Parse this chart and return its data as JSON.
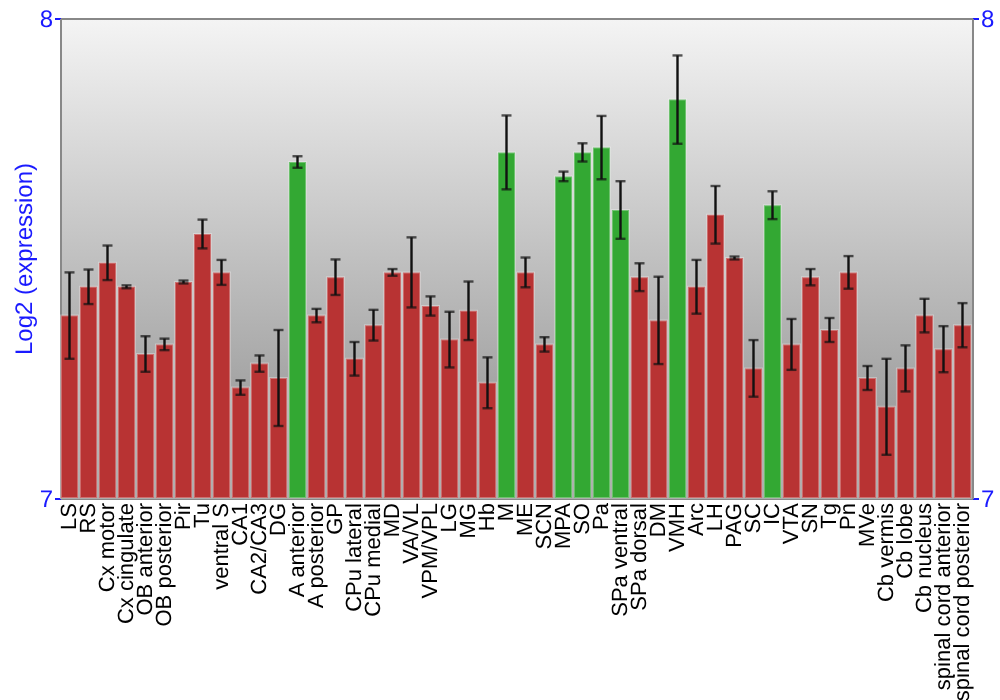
{
  "chart_data": {
    "type": "bar",
    "ylabel": "Log2 (expression)",
    "categories": [
      "LS",
      "RS",
      "Cx motor",
      "Cx cingulate",
      "OB anterior",
      "OB posterior",
      "Pir",
      "Tu",
      "ventral S",
      "CA1",
      "CA2/CA3",
      "DG",
      "A anterior",
      "A posterior",
      "GP",
      "CPu lateral",
      "CPu medial",
      "MD",
      "VA/VL",
      "VPM/VPL",
      "LG",
      "MG",
      "Hb",
      "M",
      "ME",
      "SCN",
      "MPA",
      "SO",
      "Pa",
      "SPa ventral",
      "SPa dorsal",
      "DM",
      "VMH",
      "Arc",
      "LH",
      "PAG",
      "SC",
      "IC",
      "VTA",
      "SN",
      "Tg",
      "Pn",
      "MVe",
      "Cb vermis",
      "Cb lobe",
      "Cb nucleus",
      "spinal cord anterior",
      "spinal cord posterior"
    ],
    "values": [
      7.38,
      7.44,
      7.49,
      7.44,
      7.3,
      7.32,
      7.45,
      7.55,
      7.47,
      7.23,
      7.28,
      7.25,
      7.7,
      7.38,
      7.46,
      7.29,
      7.36,
      7.47,
      7.47,
      7.4,
      7.33,
      7.39,
      7.24,
      7.72,
      7.47,
      7.32,
      7.67,
      7.72,
      7.73,
      7.6,
      7.46,
      7.37,
      7.83,
      7.44,
      7.59,
      7.5,
      7.27,
      7.61,
      7.32,
      7.46,
      7.35,
      7.47,
      7.25,
      7.19,
      7.27,
      7.38,
      7.31,
      7.36
    ],
    "errors": [
      0.09,
      0.036,
      0.036,
      0.003,
      0.037,
      0.012,
      0.003,
      0.03,
      0.026,
      0.015,
      0.017,
      0.1,
      0.012,
      0.014,
      0.037,
      0.035,
      0.032,
      0.007,
      0.073,
      0.02,
      0.058,
      0.061,
      0.053,
      0.077,
      0.031,
      0.015,
      0.01,
      0.019,
      0.066,
      0.06,
      0.029,
      0.091,
      0.092,
      0.056,
      0.06,
      0.003,
      0.059,
      0.029,
      0.053,
      0.017,
      0.025,
      0.034,
      0.025,
      0.1,
      0.048,
      0.035,
      0.048,
      0.046
    ],
    "colors": [
      "#b83333",
      "#b83333",
      "#b83333",
      "#b83333",
      "#b83333",
      "#b83333",
      "#b83333",
      "#b83333",
      "#b83333",
      "#b83333",
      "#b83333",
      "#b83333",
      "#33a833",
      "#b83333",
      "#b83333",
      "#b83333",
      "#b83333",
      "#b83333",
      "#b83333",
      "#b83333",
      "#b83333",
      "#b83333",
      "#b83333",
      "#33a833",
      "#b83333",
      "#b83333",
      "#33a833",
      "#33a833",
      "#33a833",
      "#33a833",
      "#b83333",
      "#b83333",
      "#33a833",
      "#b83333",
      "#b83333",
      "#b83333",
      "#b83333",
      "#33a833",
      "#b83333",
      "#b83333",
      "#b83333",
      "#b83333",
      "#b83333",
      "#b83333",
      "#b83333",
      "#b83333",
      "#b83333",
      "#b83333"
    ],
    "ylim": [
      7,
      8
    ],
    "yticks": [
      7,
      8
    ],
    "y2lim": [
      7,
      8
    ],
    "y2ticks": [
      7,
      8
    ]
  }
}
